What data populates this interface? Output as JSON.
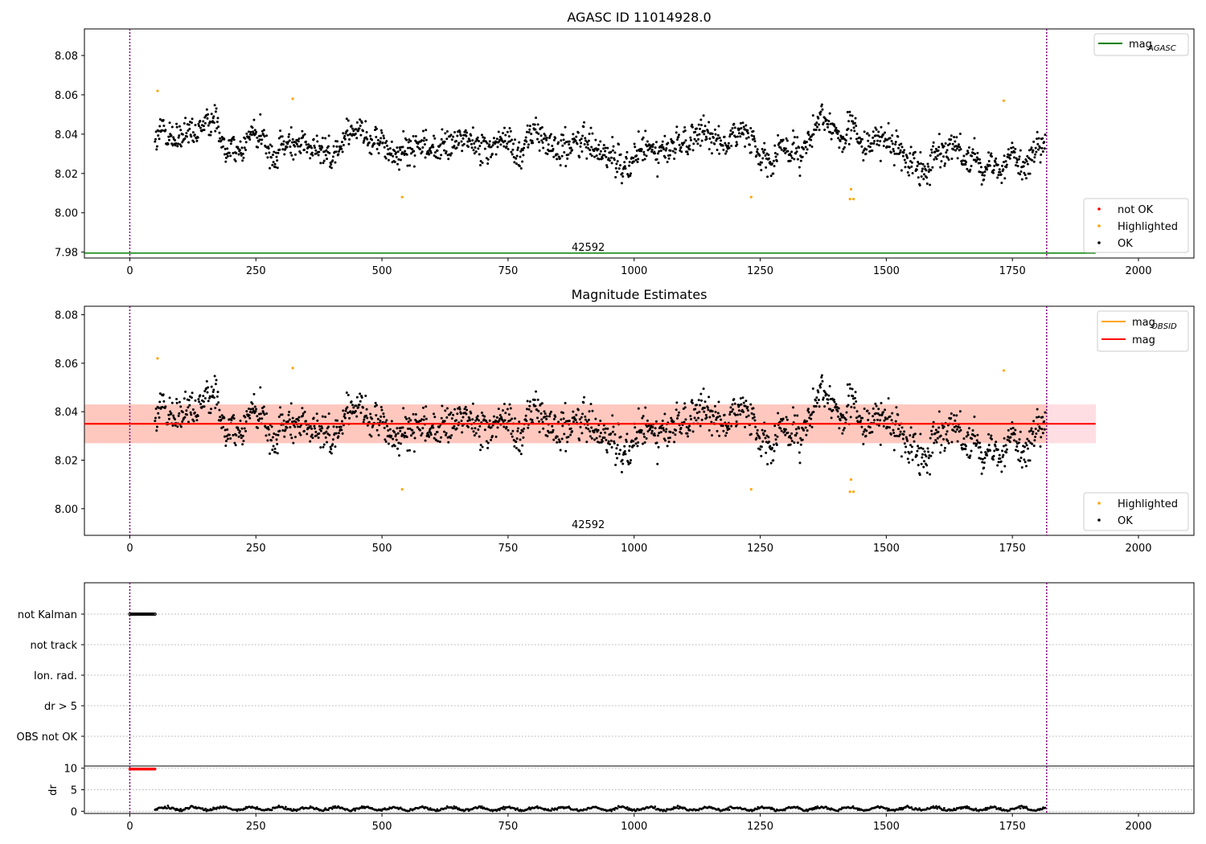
{
  "figure": {
    "title_top": "AGASC ID 11014928.0",
    "title_mid": "Magnitude Estimates",
    "obsid_label": "42592"
  },
  "colors": {
    "ok": "#000000",
    "highlighted": "#ffa500",
    "not_ok": "#ff0000",
    "mag_agasc": "#008000",
    "mag_obsid": "#ffa500",
    "mag": "#ff0000",
    "obs_boundary": "#800080",
    "band_outer": "#ffb6c1",
    "band_inner": "#ffa07a"
  },
  "chart_data": [
    {
      "type": "scatter",
      "title": "AGASC ID 11014928.0",
      "xlim": [
        -90,
        2110
      ],
      "ylim": [
        7.977,
        8.0935
      ],
      "x_ticks": [
        0,
        250,
        500,
        750,
        1000,
        1250,
        1500,
        1750,
        2000
      ],
      "y_ticks": [
        7.98,
        8.0,
        8.02,
        8.04,
        8.06,
        8.08
      ],
      "y_tick_labels": [
        "7.98",
        "8.00",
        "8.02",
        "8.04",
        "8.06",
        "8.08"
      ],
      "lines": [
        {
          "name": "mag_AGASC",
          "y": 7.9795,
          "x": [
            -90,
            1915
          ]
        }
      ],
      "obs_boundaries": [
        0,
        1818
      ],
      "obsid_annotation": {
        "text": "42592",
        "x": 909
      },
      "highlighted_points": [
        {
          "x": 55,
          "y": 8.062
        },
        {
          "x": 323,
          "y": 8.058
        },
        {
          "x": 540,
          "y": 8.008
        },
        {
          "x": 1232,
          "y": 8.008
        },
        {
          "x": 1428,
          "y": 8.007
        },
        {
          "x": 1430,
          "y": 8.012
        },
        {
          "x": 1435,
          "y": 8.007
        },
        {
          "x": 1733,
          "y": 8.057
        }
      ],
      "ok_series": {
        "x_start": 50,
        "x_end": 1815,
        "n": 1700,
        "mean": 8.035,
        "spread": 0.007,
        "ymin": 8.014,
        "ymax": 8.055
      },
      "legends": [
        {
          "position": "top-right",
          "entries": [
            {
              "label": "mag",
              "sub": "AGASC",
              "kind": "line",
              "color": "#008000"
            }
          ]
        },
        {
          "position": "lower-right",
          "entries": [
            {
              "label": "not OK",
              "kind": "dot",
              "color": "#ff0000"
            },
            {
              "label": "Highlighted",
              "kind": "dot",
              "color": "#ffa500"
            },
            {
              "label": "OK",
              "kind": "dot",
              "color": "#000000"
            }
          ]
        }
      ]
    },
    {
      "type": "scatter",
      "title": "Magnitude Estimates",
      "xlim": [
        -90,
        2110
      ],
      "ylim": [
        7.989,
        8.0835
      ],
      "x_ticks": [
        0,
        250,
        500,
        750,
        1000,
        1250,
        1500,
        1750,
        2000
      ],
      "y_ticks": [
        8.0,
        8.02,
        8.04,
        8.06,
        8.08
      ],
      "y_tick_labels": [
        "8.00",
        "8.02",
        "8.04",
        "8.06",
        "8.08"
      ],
      "lines": [
        {
          "name": "mag_OBSID",
          "y": 8.035,
          "x": [
            -90,
            1818
          ]
        },
        {
          "name": "mag",
          "y": 8.035,
          "x": [
            -90,
            1915
          ]
        }
      ],
      "bands": [
        {
          "name": "mag band",
          "y": [
            8.027,
            8.043
          ],
          "x": [
            -90,
            1915
          ]
        },
        {
          "name": "mag_OBSID band",
          "y": [
            8.027,
            8.043
          ],
          "x": [
            -90,
            1818
          ]
        }
      ],
      "obs_boundaries": [
        0,
        1818
      ],
      "obsid_annotation": {
        "text": "42592",
        "x": 909
      },
      "legends": [
        {
          "position": "top-right",
          "entries": [
            {
              "label": "mag",
              "sub": "OBSID",
              "kind": "line",
              "color": "#ffa500"
            },
            {
              "label": "mag",
              "sub": "",
              "kind": "line",
              "color": "#ff0000"
            }
          ]
        },
        {
          "position": "lower-right",
          "entries": [
            {
              "label": "Highlighted",
              "kind": "dot",
              "color": "#ffa500"
            },
            {
              "label": "OK",
              "kind": "dot",
              "color": "#000000"
            }
          ]
        }
      ]
    },
    {
      "type": "scatter",
      "title": "",
      "xlim": [
        -90,
        2110
      ],
      "x_ticks": [
        0,
        250,
        500,
        750,
        1000,
        1250,
        1500,
        1750,
        2000
      ],
      "flag_categories": [
        "not Kalman",
        "not track",
        "Ion. rad.",
        "dr > 5",
        "OBS not OK"
      ],
      "flags": [
        {
          "category": "not Kalman",
          "x_range": [
            0,
            50
          ],
          "step": 2
        }
      ],
      "obs_boundaries": [
        0,
        1818
      ]
    },
    {
      "type": "scatter",
      "title": "",
      "ylabel": "dr",
      "xlim": [
        -90,
        2110
      ],
      "ylim": [
        -0.5,
        10.5
      ],
      "y_ticks": [
        0,
        5,
        10
      ],
      "y_tick_labels": [
        "0",
        "5",
        "10"
      ],
      "dr_flagged": {
        "x_range": [
          0,
          50
        ],
        "y": 9.8,
        "color": "#ff0000"
      },
      "dr_ok": {
        "x_range": [
          50,
          1815
        ],
        "mean": 0.6,
        "spread": 0.35
      },
      "obs_boundaries": [
        0,
        1818
      ]
    }
  ]
}
